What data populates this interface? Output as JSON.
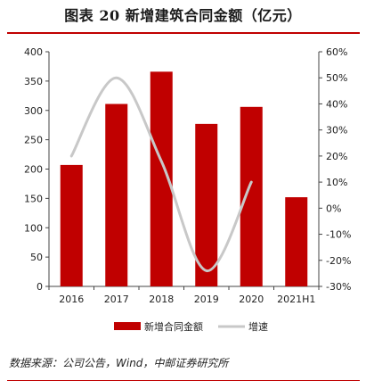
{
  "header": {
    "title": "图表 20 新增建筑合同金额（亿元）"
  },
  "footer": {
    "source": "数据来源：公司公告，Wind，中邮证券研究所"
  },
  "colors": {
    "bar": "#c00000",
    "line": "#c8c8c8",
    "rule": "#c00000"
  },
  "chart_data": {
    "type": "bar",
    "categories": [
      "2016",
      "2017",
      "2018",
      "2019",
      "2020",
      "2021H1"
    ],
    "series": [
      {
        "name": "新增合同金额",
        "type": "bar",
        "axis": "left",
        "values": [
          207,
          311,
          366,
          277,
          306,
          152
        ]
      },
      {
        "name": "增速",
        "type": "line",
        "axis": "right",
        "smooth": true,
        "values": [
          20,
          50,
          18,
          -24,
          10,
          null
        ]
      }
    ],
    "y_left": {
      "ylim": [
        0,
        400
      ],
      "ticks": [
        0,
        50,
        100,
        150,
        200,
        250,
        300,
        350,
        400
      ]
    },
    "y_right": {
      "ylim": [
        -30,
        60
      ],
      "unit": "%",
      "ticks": [
        -30,
        -20,
        -10,
        0,
        10,
        20,
        30,
        40,
        50,
        60
      ],
      "tick_labels": [
        "-30%",
        "-20%",
        "-10%",
        "0%",
        "10%",
        "20%",
        "30%",
        "40%",
        "50%",
        "60%"
      ]
    },
    "legend": {
      "position": "bottom",
      "entries": [
        "新增合同金额",
        "增速"
      ]
    },
    "grid": false
  }
}
